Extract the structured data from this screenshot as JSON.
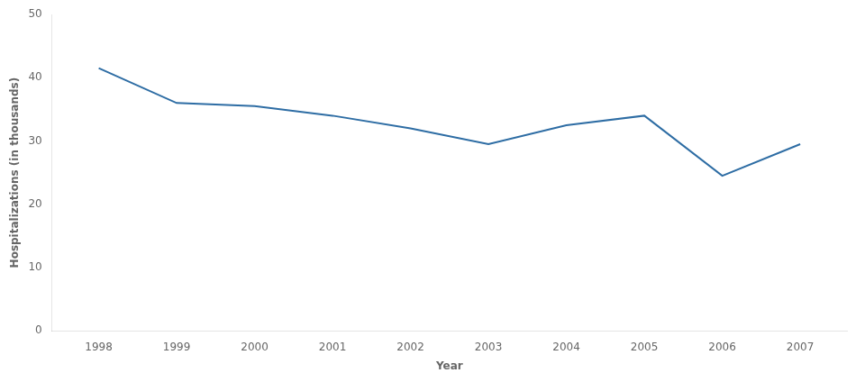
{
  "chart_data": {
    "type": "line",
    "x": [
      1998,
      1999,
      2000,
      2001,
      2002,
      2003,
      2004,
      2005,
      2006,
      2007
    ],
    "values": [
      41.5,
      36.0,
      35.5,
      34.0,
      32.0,
      29.5,
      32.5,
      34.0,
      24.5,
      29.5
    ],
    "color": "#2E6DA4",
    "xlabel": "Year",
    "ylabel": "Hospitalizations (in thousands)",
    "xlim": [
      1997.4,
      2007.6
    ],
    "xticks": [
      1998,
      1999,
      2000,
      2001,
      2002,
      2003,
      2004,
      2005,
      2006,
      2007
    ],
    "ylim": [
      0,
      50
    ],
    "yticks": [
      0,
      10,
      20,
      30,
      40,
      50
    ],
    "grid": false
  }
}
